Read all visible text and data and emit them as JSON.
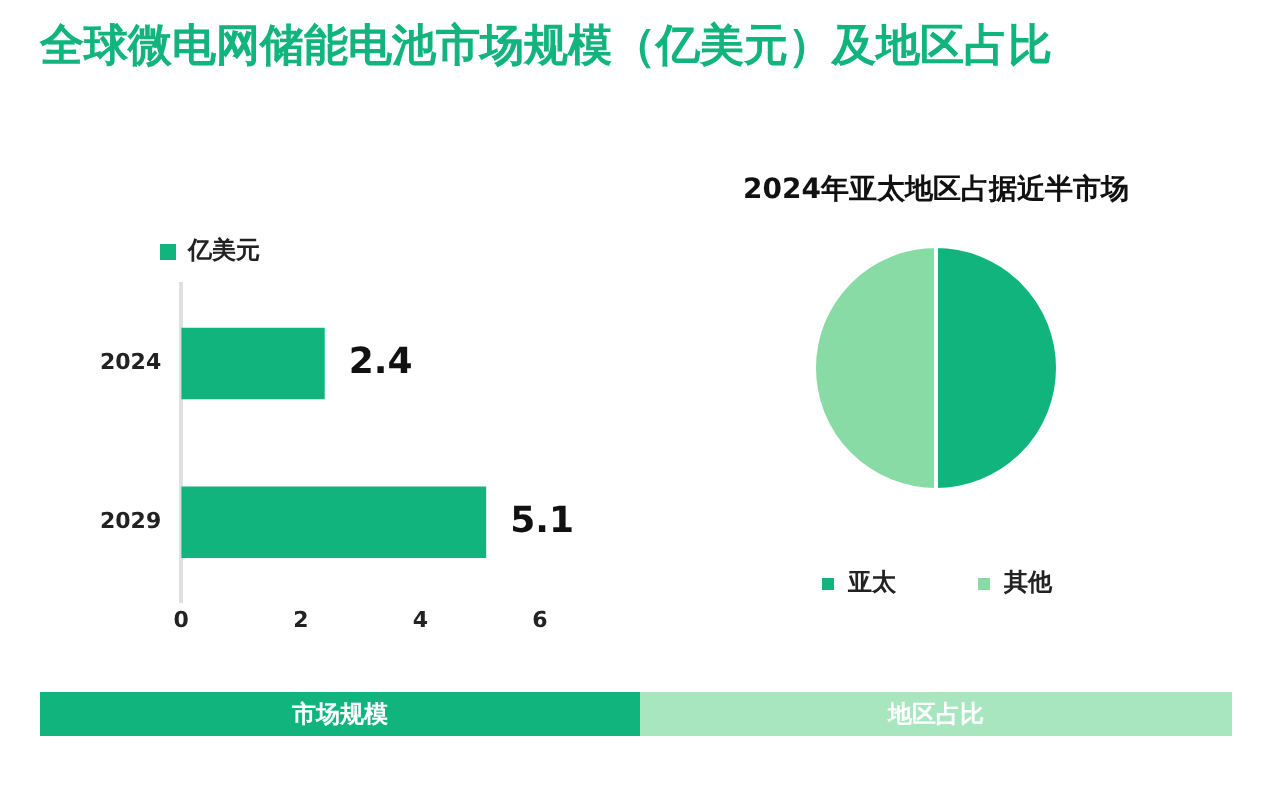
{
  "chart_data": [
    {
      "type": "bar",
      "title": "全球微电网储能电池市场规模（亿美元）及地区占比",
      "orientation": "horizontal",
      "categories": [
        "2024",
        "2029"
      ],
      "series": [
        {
          "name": "亿美元",
          "color": "#10b47c",
          "values": [
            2.4,
            5.1
          ]
        }
      ],
      "xlim": [
        0,
        6
      ],
      "xticks": [
        0,
        2,
        4,
        6
      ],
      "grid": false,
      "legend": "top left",
      "data_labels": true,
      "annotations": [
        "市场规模"
      ]
    },
    {
      "type": "pie",
      "title": "2024年亚太地区占据近半市场",
      "categories": [
        "亚太",
        "其他"
      ],
      "values": [
        50,
        50
      ],
      "colors": [
        "#10b47c",
        "#88dba4"
      ],
      "legend": "bottom",
      "annotations": [
        "地区占比"
      ]
    }
  ]
}
